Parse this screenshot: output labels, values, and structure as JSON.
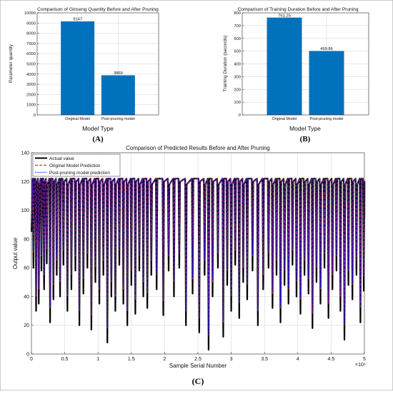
{
  "colors": {
    "bar": "#0072bd",
    "bar_stroke": "#00508a",
    "actual": "#000000",
    "original_pred": "#e8243c",
    "pruned_pred": "#1a1aff",
    "grid": "#d0d0d0",
    "axis": "#262626"
  },
  "chart_data": [
    {
      "id": "A",
      "type": "bar",
      "title": "Comparison of Ginseng Quantity Before and After Pruning",
      "xlabel": "Model Type",
      "ylabel": "Parameter quantity",
      "panel_label": "(A)",
      "categories": [
        "Original Model",
        "Post-pruning model"
      ],
      "values": [
        9147,
        3869
      ],
      "value_labels": [
        "9147",
        "3869"
      ],
      "ylim": [
        0,
        10000
      ],
      "yticks": [
        0,
        1000,
        2000,
        3000,
        4000,
        5000,
        6000,
        7000,
        8000,
        9000,
        10000
      ],
      "ytick_labels": [
        "0",
        "1000",
        "2000",
        "3000",
        "4000",
        "5000",
        "6000",
        "7000",
        "8000",
        "9000",
        "10000"
      ],
      "grid": true
    },
    {
      "id": "B",
      "type": "bar",
      "title": "Comparison of Training Duration Before and After Pruning",
      "xlabel": "Model Type",
      "ylabel": "Training Duration (seconds)",
      "panel_label": "(B)",
      "categories": [
        "Original Model",
        "Post-pruning model"
      ],
      "values": [
        761.25,
        499.86
      ],
      "value_labels": [
        "761.25",
        "499.86"
      ],
      "ylim": [
        0,
        800
      ],
      "yticks": [
        0,
        100,
        200,
        300,
        400,
        500,
        600,
        700,
        800
      ],
      "ytick_labels": [
        "0",
        "100",
        "200",
        "300",
        "400",
        "500",
        "600",
        "700",
        "800"
      ],
      "grid": true
    },
    {
      "id": "C",
      "type": "line",
      "title": "Comparison of Predicted Results Before and After Pruning",
      "xlabel": "Sample Serial Number",
      "ylabel": "Output value",
      "panel_label": "(C)",
      "xlim": [
        0,
        5
      ],
      "x_multiplier": "×10⁴",
      "xticks": [
        0,
        0.5,
        1,
        1.5,
        2,
        2.5,
        3,
        3.5,
        4,
        4.5,
        5
      ],
      "xtick_labels": [
        "0",
        "0.5",
        "1",
        "1.5",
        "2",
        "2.5",
        "3",
        "3.5",
        "4",
        "4.5",
        "5"
      ],
      "ylim": [
        0,
        140
      ],
      "yticks": [
        0,
        20,
        40,
        60,
        80,
        100,
        120,
        140
      ],
      "ytick_labels": [
        "0",
        "20",
        "40",
        "60",
        "80",
        "100",
        "120",
        "140"
      ],
      "grid": true,
      "legend_position": "top-left",
      "series": [
        {
          "name": "Actual value",
          "style": "solid"
        },
        {
          "name": "Original Model Prediction",
          "style": "dashed"
        },
        {
          "name": "Post-pruning model prediction",
          "style": "dotted"
        }
      ],
      "peak_value": 122,
      "troughs": [
        [
          0.03,
          60
        ],
        [
          0.07,
          30
        ],
        [
          0.11,
          35
        ],
        [
          0.15,
          58
        ],
        [
          0.19,
          45
        ],
        [
          0.23,
          63
        ],
        [
          0.28,
          22
        ],
        [
          0.33,
          38
        ],
        [
          0.38,
          55
        ],
        [
          0.43,
          40
        ],
        [
          0.48,
          62
        ],
        [
          0.54,
          30
        ],
        [
          0.6,
          45
        ],
        [
          0.66,
          58
        ],
        [
          0.72,
          20
        ],
        [
          0.78,
          42
        ],
        [
          0.84,
          60
        ],
        [
          0.9,
          17
        ],
        [
          0.96,
          50
        ],
        [
          1.02,
          35
        ],
        [
          1.08,
          55
        ],
        [
          1.14,
          8
        ],
        [
          1.2,
          40
        ],
        [
          1.26,
          30
        ],
        [
          1.32,
          62
        ],
        [
          1.38,
          35
        ],
        [
          1.44,
          20
        ],
        [
          1.5,
          48
        ],
        [
          1.56,
          28
        ],
        [
          1.62,
          58
        ],
        [
          1.68,
          40
        ],
        [
          1.74,
          32
        ],
        [
          1.8,
          55
        ],
        [
          1.88,
          45
        ],
        [
          1.98,
          27
        ],
        [
          2.06,
          58
        ],
        [
          2.14,
          40
        ],
        [
          2.22,
          60
        ],
        [
          2.32,
          20
        ],
        [
          2.42,
          42
        ],
        [
          2.52,
          15
        ],
        [
          2.6,
          55
        ],
        [
          2.66,
          3
        ],
        [
          2.72,
          40
        ],
        [
          2.8,
          60
        ],
        [
          2.88,
          12
        ],
        [
          2.94,
          48
        ],
        [
          3.0,
          30
        ],
        [
          3.06,
          62
        ],
        [
          3.12,
          25
        ],
        [
          3.18,
          50
        ],
        [
          3.24,
          38
        ],
        [
          3.32,
          58
        ],
        [
          3.4,
          20
        ],
        [
          3.48,
          45
        ],
        [
          3.56,
          60
        ],
        [
          3.62,
          32
        ],
        [
          3.68,
          55
        ],
        [
          3.74,
          22
        ],
        [
          3.8,
          48
        ],
        [
          3.86,
          35
        ],
        [
          3.92,
          62
        ],
        [
          3.98,
          40
        ],
        [
          4.04,
          28
        ],
        [
          4.1,
          55
        ],
        [
          4.16,
          42
        ],
        [
          4.22,
          18
        ],
        [
          4.28,
          50
        ],
        [
          4.34,
          35
        ],
        [
          4.4,
          60
        ],
        [
          4.46,
          25
        ],
        [
          4.52,
          45
        ],
        [
          4.58,
          58
        ],
        [
          4.64,
          30
        ],
        [
          4.7,
          10
        ],
        [
          4.76,
          48
        ],
        [
          4.82,
          38
        ],
        [
          4.88,
          55
        ],
        [
          4.94,
          22
        ],
        [
          4.99,
          44
        ]
      ]
    }
  ]
}
